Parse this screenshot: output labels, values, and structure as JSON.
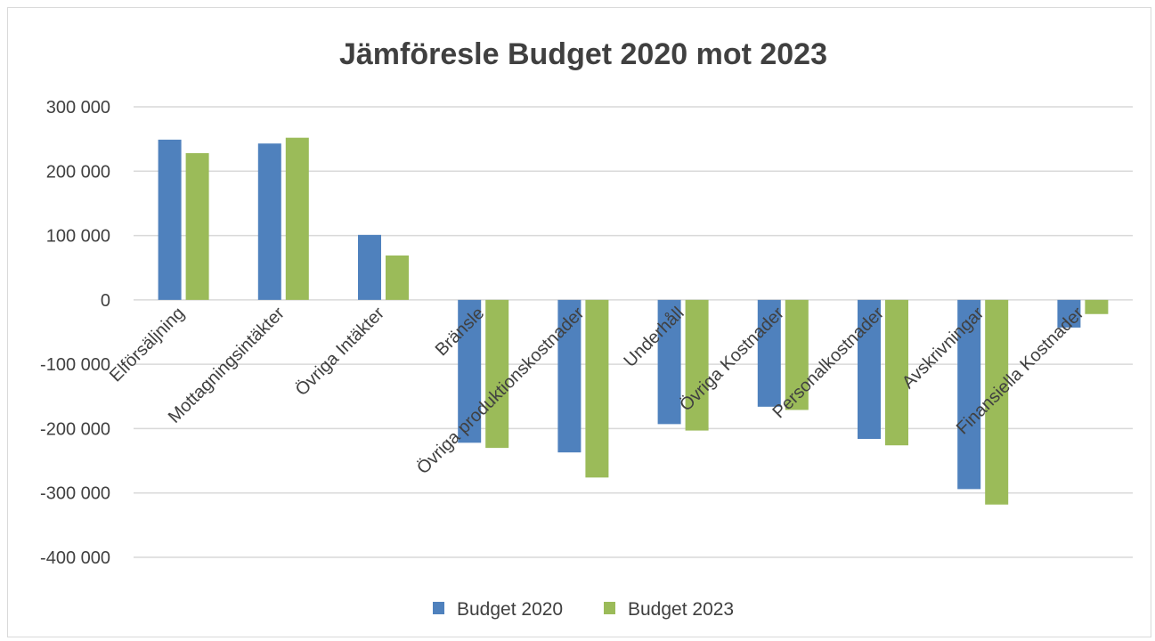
{
  "chart_data": {
    "type": "bar",
    "title": "Jämföresle Budget 2020 mot 2023",
    "categories": [
      "Elförsäljning",
      "Mottagningsintäkter",
      "Övriga Intäkter",
      "Bränsle",
      "Övriga produktionskostnader",
      "Underhåll",
      "Övriga Kostnader",
      "Personalkostnader",
      "Avskrivningar",
      "Finansiella Kostnader"
    ],
    "series": [
      {
        "name": "Budget 2020",
        "color": "#4f81bd",
        "values": [
          249000,
          243000,
          101000,
          -222000,
          -237000,
          -193000,
          -166000,
          -216000,
          -294000,
          -43000
        ]
      },
      {
        "name": "Budget 2023",
        "color": "#9bbb59",
        "values": [
          228000,
          252000,
          69000,
          -230000,
          -276000,
          -203000,
          -171000,
          -226000,
          -318000,
          -22000
        ]
      }
    ],
    "ylim": [
      -400000,
      300000
    ],
    "yticks": [
      300000,
      200000,
      100000,
      0,
      -100000,
      -200000,
      -300000,
      -400000
    ],
    "ytick_labels": [
      "300 000",
      "200 000",
      "100 000",
      "0",
      "-100 000",
      "-200 000",
      "-300 000",
      "-400 000"
    ],
    "grid": true,
    "legend": "bottom",
    "xlabel": "",
    "ylabel": ""
  }
}
